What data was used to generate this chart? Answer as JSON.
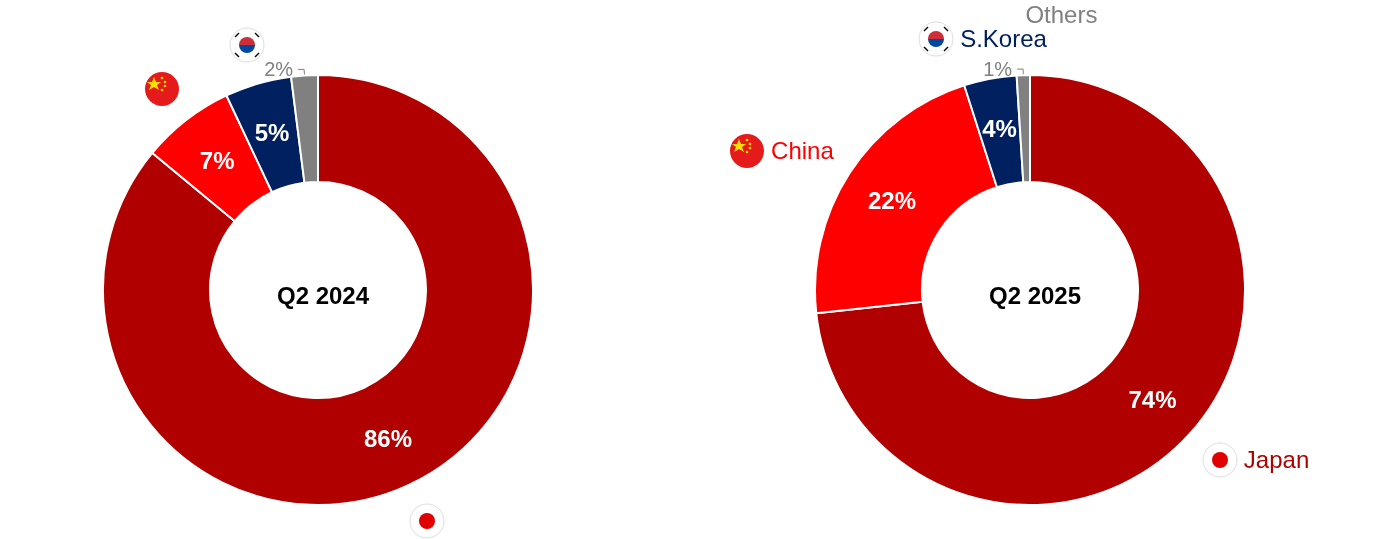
{
  "chart_data": [
    {
      "type": "donut",
      "title": "Q2 2024",
      "categories": [
        null,
        null,
        null,
        null
      ],
      "values": [
        86,
        7,
        5,
        2
      ],
      "value_labels": [
        "86%",
        "7%",
        "5%",
        "2%"
      ],
      "colors": [
        "#b00000",
        "#ff0000",
        "#002060",
        "#808080"
      ],
      "legend": false
    },
    {
      "type": "donut",
      "title": "Q2 2025",
      "categories": [
        "Japan",
        "China",
        "S.Korea",
        "Others"
      ],
      "values": [
        74,
        22,
        4,
        1
      ],
      "value_labels": [
        "74%",
        "22%",
        "4%",
        "1%"
      ],
      "colors": [
        "#b00000",
        "#ff0000",
        "#002060",
        "#808080"
      ],
      "legend": false
    }
  ]
}
